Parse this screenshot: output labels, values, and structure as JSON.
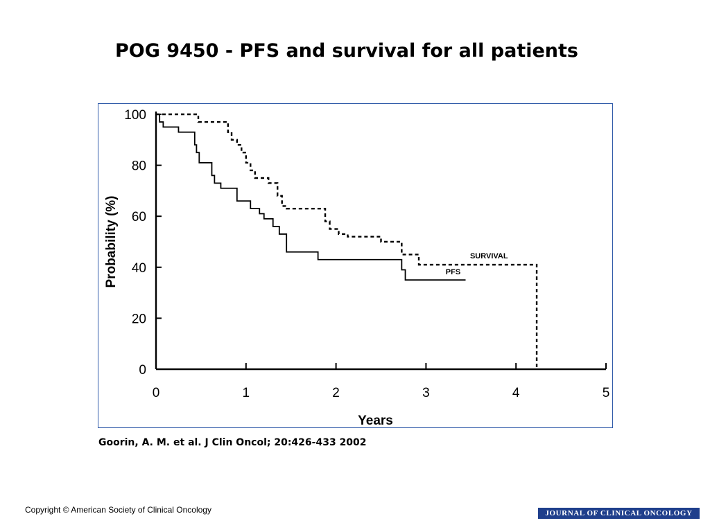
{
  "slide": {
    "title": "POG 9450 - PFS and survival for all patients",
    "citation": "Goorin, A. M. et al. J Clin Oncol; 20:426-433 2002",
    "copyright": "Copyright © American Society of Clinical Oncology",
    "journal_logo": "JOURNAL OF CLINICAL ONCOLOGY"
  },
  "chart_data": {
    "type": "line",
    "step": true,
    "xlabel": "Years",
    "ylabel": "Probability (%)",
    "xlim": [
      0,
      5
    ],
    "ylim": [
      0,
      100
    ],
    "xticks": [
      "0",
      "1",
      "2",
      "3",
      "4",
      "5"
    ],
    "yticks": [
      "0",
      "20",
      "40",
      "60",
      "80",
      "100"
    ],
    "grid": false,
    "legend": "inline labels",
    "series": [
      {
        "name": "SURVIVAL",
        "style": "dashed",
        "x": [
          0,
          0.47,
          0.8,
          0.84,
          0.9,
          0.95,
          1.0,
          1.05,
          1.1,
          1.25,
          1.35,
          1.4,
          1.45,
          1.88,
          1.93,
          2.03,
          2.13,
          2.5,
          2.73,
          2.92,
          4.23,
          4.23
        ],
        "y": [
          100,
          97,
          93,
          90,
          88,
          85,
          81,
          78,
          75,
          73,
          68,
          64,
          63,
          58,
          55,
          53,
          52,
          50,
          45,
          41,
          41,
          0
        ]
      },
      {
        "name": "PFS",
        "style": "solid",
        "x": [
          0,
          0.04,
          0.08,
          0.25,
          0.43,
          0.45,
          0.48,
          0.62,
          0.65,
          0.72,
          0.9,
          1.05,
          1.15,
          1.2,
          1.3,
          1.37,
          1.45,
          1.8,
          2.73,
          2.77,
          3.44
        ],
        "y": [
          100,
          97,
          95,
          93,
          88,
          85,
          81,
          76,
          73,
          71,
          66,
          63,
          61,
          59,
          56,
          53,
          46,
          43,
          39,
          35,
          35
        ]
      }
    ]
  }
}
